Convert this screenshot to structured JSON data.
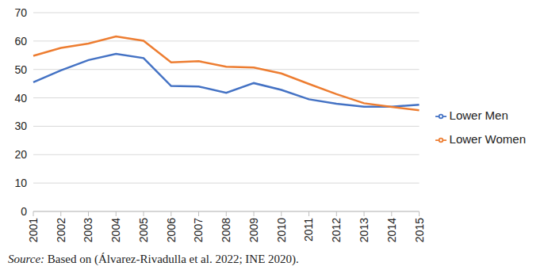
{
  "chart_data": {
    "type": "line",
    "categories": [
      "2001",
      "2002",
      "2003",
      "2004",
      "2005",
      "2006",
      "2007",
      "2008",
      "2009",
      "2010",
      "2011",
      "2012",
      "2013",
      "2014",
      "2015"
    ],
    "series": [
      {
        "name": "Lower Men",
        "color": "#4472c4",
        "values": [
          45.5,
          49.7,
          53.3,
          55.5,
          54.0,
          44.2,
          44.0,
          41.8,
          45.2,
          42.8,
          39.5,
          37.9,
          36.9,
          36.9,
          37.6
        ]
      },
      {
        "name": "Lower Women",
        "color": "#ed7d31",
        "values": [
          54.8,
          57.6,
          59.1,
          61.6,
          60.1,
          52.5,
          52.9,
          51.0,
          50.7,
          48.6,
          44.9,
          41.3,
          38.1,
          36.8,
          35.6
        ]
      }
    ],
    "ylim": [
      0,
      70
    ],
    "yticks": [
      0,
      10,
      20,
      30,
      40,
      50,
      60,
      70
    ],
    "grid": true,
    "legend": "right",
    "annotations": [
      "Source: Based on (Álvarez-Rivadulla et al. 2022; INE 2020)."
    ]
  }
}
